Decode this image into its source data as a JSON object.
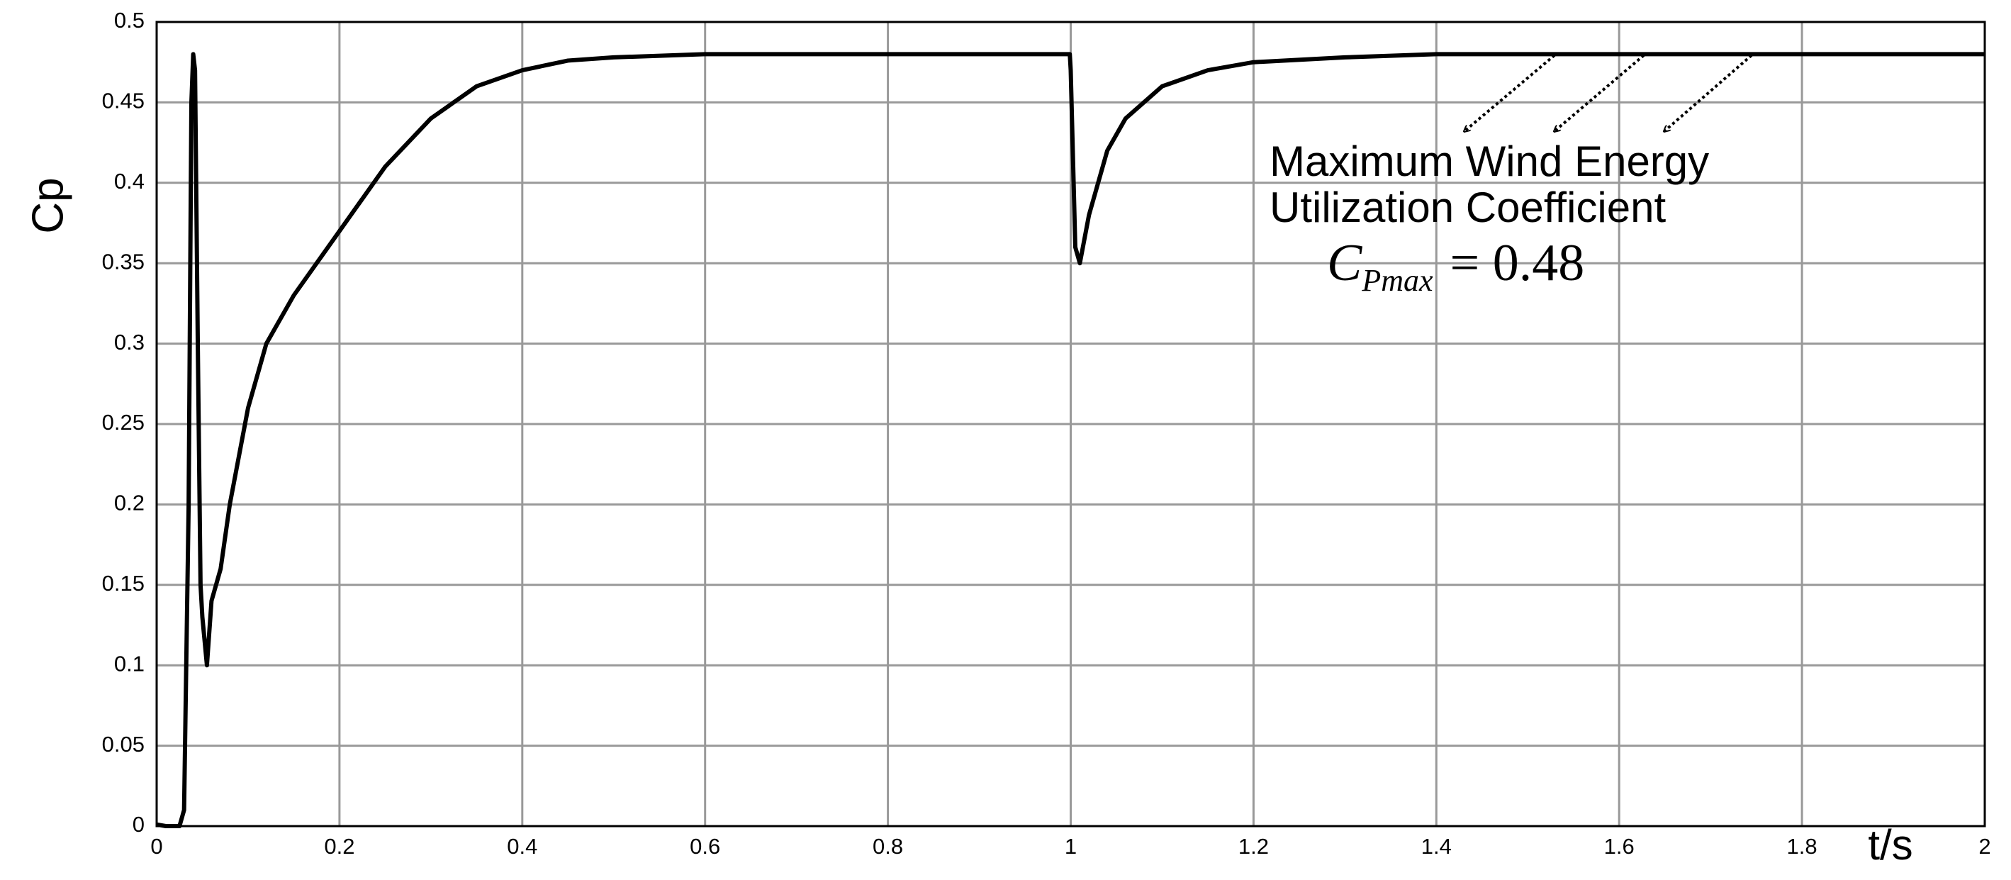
{
  "chart_data": {
    "type": "line",
    "y_label": "Cp",
    "x_label": "t/s",
    "annotation": {
      "lines": [
        "Maximum Wind Energy",
        "Utilization Coefficient"
      ],
      "symbol": "C",
      "subscript": "Pmax",
      "equation": "= 0.48"
    },
    "x": [
      0,
      0.01,
      0.025,
      0.03,
      0.035,
      0.038,
      0.04,
      0.042,
      0.045,
      0.048,
      0.05,
      0.055,
      0.06,
      0.07,
      0.08,
      0.1,
      0.12,
      0.15,
      0.2,
      0.25,
      0.3,
      0.35,
      0.4,
      0.45,
      0.5,
      0.6,
      0.8,
      0.999,
      1.0,
      1.005,
      1.01,
      1.02,
      1.04,
      1.06,
      1.1,
      1.15,
      1.2,
      1.3,
      1.4,
      2.0
    ],
    "series": [
      {
        "name": "Cp",
        "color": "#000000",
        "values": [
          0.001,
          0.0,
          0.0,
          0.01,
          0.2,
          0.45,
          0.48,
          0.47,
          0.3,
          0.15,
          0.13,
          0.1,
          0.14,
          0.16,
          0.2,
          0.26,
          0.3,
          0.33,
          0.37,
          0.41,
          0.44,
          0.46,
          0.47,
          0.476,
          0.478,
          0.48,
          0.48,
          0.48,
          0.47,
          0.36,
          0.35,
          0.38,
          0.42,
          0.44,
          0.46,
          0.47,
          0.475,
          0.478,
          0.48,
          0.48
        ]
      }
    ],
    "xlim": [
      0,
      2
    ],
    "xticks": [
      0,
      0.2,
      0.4,
      0.6,
      0.8,
      1,
      1.2,
      1.4,
      1.6,
      1.8,
      2
    ],
    "ylim": [
      0,
      0.5
    ],
    "yticks": [
      0,
      0.05,
      0.1,
      0.15,
      0.2,
      0.25,
      0.3,
      0.35,
      0.4,
      0.45,
      0.5
    ],
    "grid": true
  }
}
